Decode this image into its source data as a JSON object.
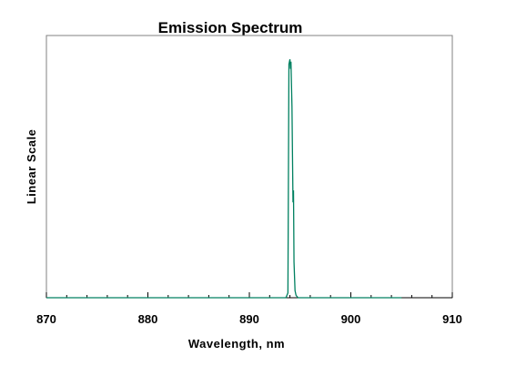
{
  "chart_data": {
    "type": "line",
    "title": "Emission Spectrum",
    "xlabel": "Wavelength, nm",
    "ylabel": "Linear Scale",
    "xlim": [
      870,
      910
    ],
    "ylim": [
      0,
      1.1
    ],
    "x_ticks": [
      "870",
      "880",
      "890",
      "900",
      "910"
    ],
    "x_tick_values": [
      870,
      880,
      890,
      900,
      910
    ],
    "x_minor_step": 2,
    "grid": false,
    "line_color": "#008060",
    "series": [
      {
        "x": [
          870,
          893.6,
          893.8,
          893.9,
          894.0,
          894.05,
          894.1,
          894.2,
          894.3,
          894.35,
          894.4,
          894.5,
          894.6,
          894.8,
          905
        ],
        "y": [
          0,
          0,
          0.02,
          0.98,
          1.0,
          0.96,
          0.99,
          0.8,
          0.4,
          0.45,
          0.15,
          0.03,
          0.01,
          0,
          0
        ]
      }
    ]
  }
}
